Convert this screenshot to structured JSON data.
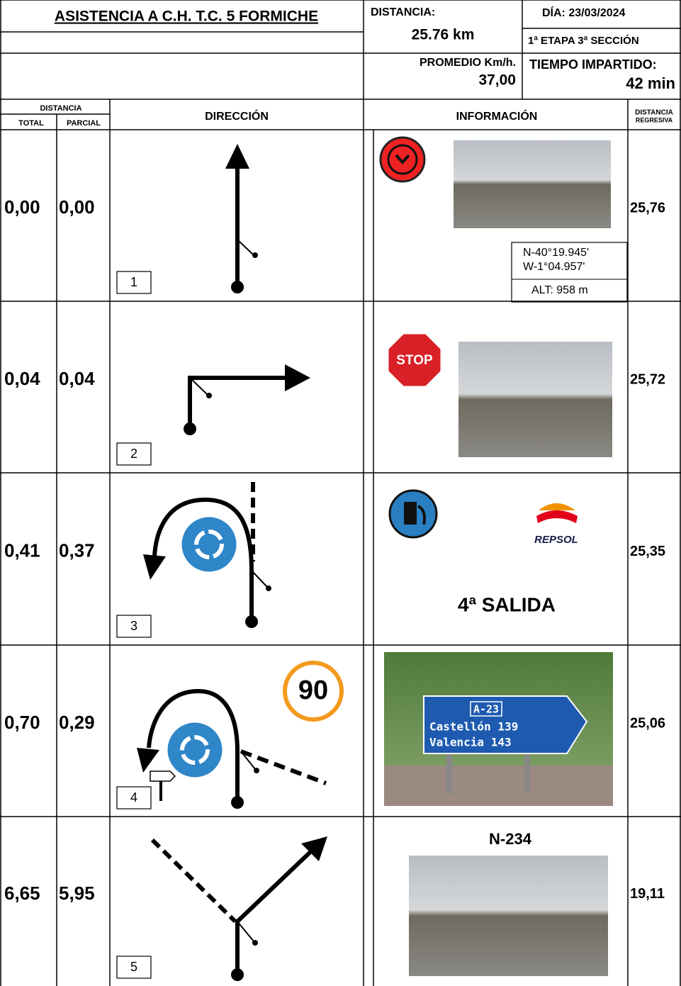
{
  "header": {
    "title": "ASISTENCIA A C.H. T.C. 5 FORMICHE",
    "distance_label": "DISTANCIA:",
    "distance": "25.76 km",
    "date": "DÍA: 23/03/2024",
    "stage": "1ª ETAPA 3ª SECCIÓN",
    "average_label": "PROMEDIO Km/h.",
    "average": "37,00",
    "time_label": "TIEMPO IMPARTIDO:",
    "time": "42 min"
  },
  "columns": {
    "distance": "DISTANCIA",
    "total": "TOTAL",
    "partial": "PARCIAL",
    "direction": "DIRECCIÓN",
    "information": "INFORMACIÓN",
    "countdown": [
      "DISTANCIA",
      "REGRESIVA"
    ]
  },
  "rows": [
    {
      "total": "0,00",
      "partial": "0,00",
      "number": "1",
      "countdown": "25,76",
      "info": {
        "coords": [
          "N-40°19.945'",
          "W-1°04.957'",
          "ALT: 958 m"
        ]
      }
    },
    {
      "total": "0,04",
      "partial": "0,04",
      "number": "2",
      "countdown": "25,72",
      "info": {
        "sign": "STOP"
      }
    },
    {
      "total": "0,41",
      "partial": "0,37",
      "number": "3",
      "countdown": "25,35",
      "info": {
        "brand": "REPSOL",
        "note": "4ª SALIDA"
      }
    },
    {
      "total": "0,70",
      "partial": "0,29",
      "number": "4",
      "countdown": "25,06",
      "info": {
        "speed": "90",
        "sign_road": "A-23",
        "sign_lines": [
          "Castellón 139",
          "Valencia 143"
        ]
      }
    },
    {
      "total": "6,65",
      "partial": "5,95",
      "number": "5",
      "countdown": "19,11",
      "info": {
        "road": "N-234"
      }
    }
  ]
}
